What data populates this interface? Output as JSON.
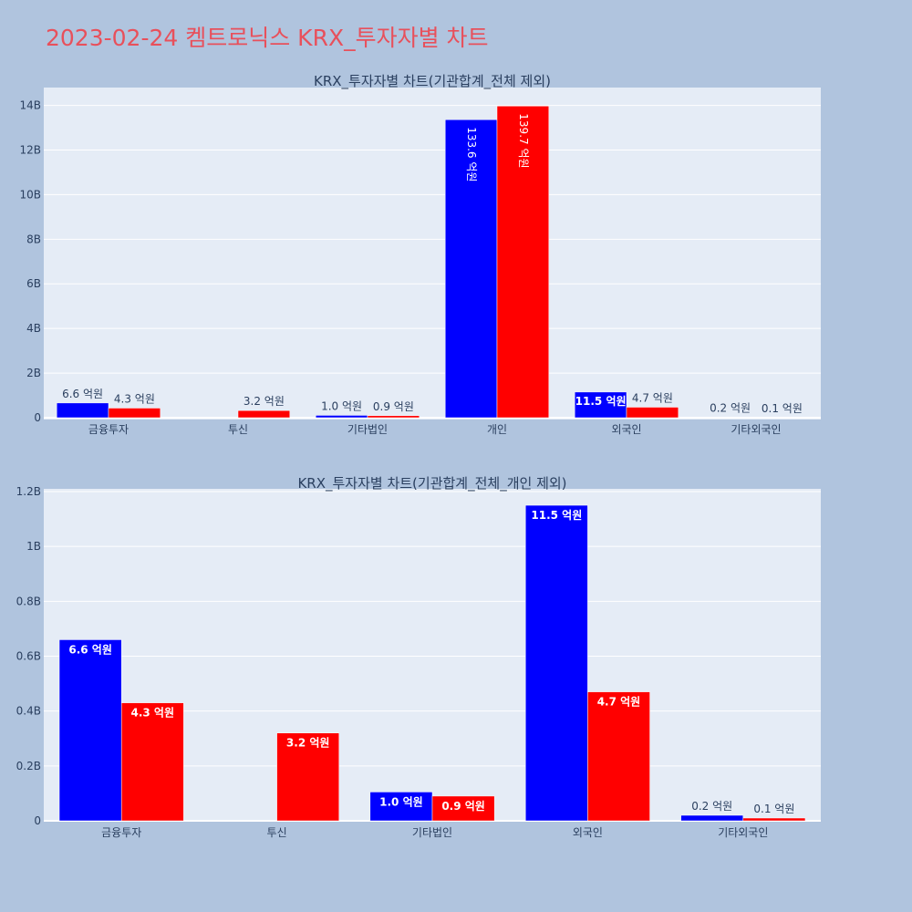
{
  "page": {
    "title": "2023-02-24 켐트로닉스 KRX_투자자별 차트"
  },
  "colors": {
    "background": "#b0c4de",
    "plot_bg": "#e5ecf6",
    "grid": "#ffffff",
    "title": "#e8505b",
    "series_1": "#0000ff",
    "series_2": "#ff0000"
  },
  "chart_data": [
    {
      "type": "bar",
      "title": "KRX_투자자별 차트(기관합계_전체 제외)",
      "categories": [
        "금융투자",
        "투신",
        "기타법인",
        "개인",
        "외국인",
        "기타외국인"
      ],
      "series": [
        {
          "values": [
            660000000,
            0,
            105000000,
            13360000000,
            1150000000,
            20000000
          ],
          "labels": [
            "6.6 억원",
            "",
            "1.0 억원",
            "133.6 억원",
            "11.5 억원",
            "0.2 억원"
          ]
        },
        {
          "values": [
            430000000,
            320000000,
            90000000,
            13970000000,
            470000000,
            10000000
          ],
          "labels": [
            "4.3 억원",
            "3.2 억원",
            "0.9 억원",
            "139.7 억원",
            "4.7 억원",
            "0.1 억원"
          ]
        }
      ],
      "ylim": [
        0,
        14800000000
      ],
      "yticks": [
        0,
        2000000000,
        4000000000,
        6000000000,
        8000000000,
        10000000000,
        12000000000,
        14000000000
      ],
      "ytick_labels": [
        "0",
        "2B",
        "4B",
        "6B",
        "8B",
        "10B",
        "12B",
        "14B"
      ],
      "grid": true
    },
    {
      "type": "bar",
      "title": "KRX_투자자별 차트(기관합계_전체_개인 제외)",
      "categories": [
        "금융투자",
        "투신",
        "기타법인",
        "외국인",
        "기타외국인"
      ],
      "series": [
        {
          "values": [
            660000000,
            0,
            105000000,
            1150000000,
            20000000
          ],
          "labels": [
            "6.6 억원",
            "",
            "1.0 억원",
            "11.5 억원",
            "0.2 억원"
          ]
        },
        {
          "values": [
            430000000,
            320000000,
            90000000,
            470000000,
            10000000
          ],
          "labels": [
            "4.3 억원",
            "3.2 억원",
            "0.9 억원",
            "4.7 억원",
            "0.1 억원"
          ]
        }
      ],
      "ylim": [
        0,
        1210000000
      ],
      "yticks": [
        0,
        200000000,
        400000000,
        600000000,
        800000000,
        1000000000,
        1200000000
      ],
      "ytick_labels": [
        "0",
        "0.2B",
        "0.4B",
        "0.6B",
        "0.8B",
        "1B",
        "1.2B"
      ],
      "grid": true
    }
  ]
}
